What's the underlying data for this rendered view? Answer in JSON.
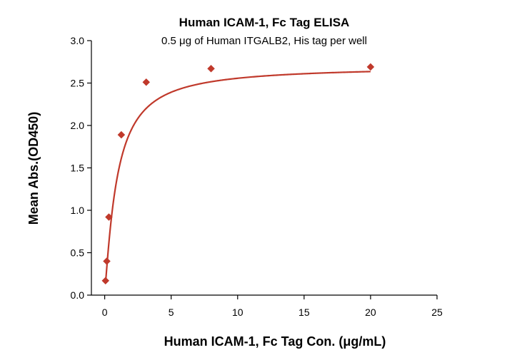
{
  "chart_data": {
    "type": "scatter",
    "title": "Human ICAM-1, Fc Tag ELISA",
    "subtitle": "0.5 μg of Human ITGALB2, His tag per well",
    "xlabel": "Human ICAM-1, Fc Tag Con. (μg/mL)",
    "ylabel": "Mean Abs.(OD450)",
    "xlim": [
      -1,
      25
    ],
    "ylim": [
      0,
      3.0
    ],
    "x_ticks": [
      0,
      5,
      10,
      15,
      20,
      25
    ],
    "x_tick_labels": [
      "0",
      "5",
      "10",
      "15",
      "20",
      "25"
    ],
    "y_ticks": [
      0,
      0.5,
      1.0,
      1.5,
      2.0,
      2.5,
      3.0
    ],
    "y_tick_labels": [
      "0.0",
      "0.5",
      "1.0",
      "1.5",
      "2.0",
      "2.5",
      "3.0"
    ],
    "grid": false,
    "legend": "none",
    "series": [
      {
        "marker": "diamond",
        "color": "#c0392b",
        "x": [
          0.0625,
          0.156,
          0.3125,
          1.25,
          3.125,
          8,
          20
        ],
        "y": [
          0.17,
          0.4,
          0.92,
          1.89,
          2.51,
          2.67,
          2.69
        ]
      }
    ],
    "fit_curve": {
      "type": "4PL",
      "color": "#c0392b",
      "bottom": 0.04,
      "top": 2.7,
      "ec50": 0.92,
      "hill": 1.2
    }
  }
}
